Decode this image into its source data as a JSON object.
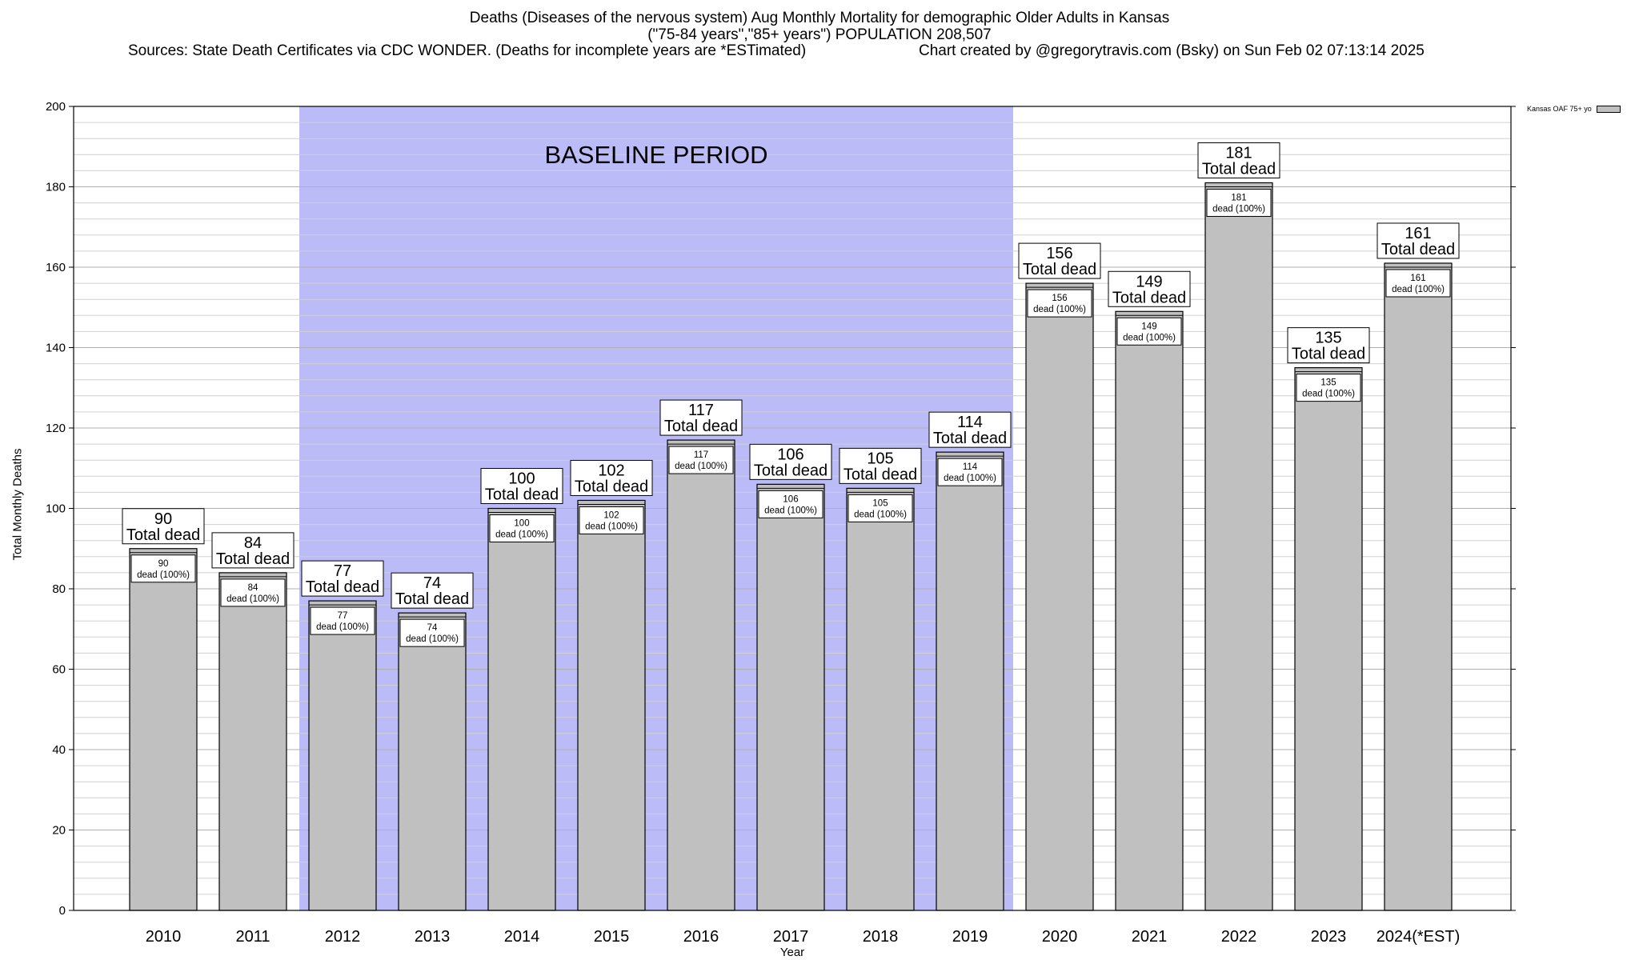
{
  "header": {
    "title": "Deaths (Diseases of the nervous system) Aug Monthly Mortality for demographic Older Adults in Kansas",
    "subtitle": "(\"75-84 years\",\"85+ years\") POPULATION 208,507",
    "sources": "Sources: State Death Certificates via CDC WONDER. (Deaths for incomplete years are *ESTimated)",
    "credit": "Chart created by @gregorytravis.com (Bsky) on Sun Feb 02 07:13:14 2025"
  },
  "chart_data": {
    "type": "bar",
    "title": "Deaths (Diseases of the nervous system) Aug Monthly Mortality for demographic Older Adults in Kansas",
    "xlabel": "Year",
    "ylabel": "Total Monthly Deaths",
    "ylim": [
      0,
      200
    ],
    "yticks": [
      0,
      20,
      40,
      60,
      80,
      100,
      120,
      140,
      160,
      180,
      200
    ],
    "grid": true,
    "legend_position": "top-right",
    "categories": [
      "2010",
      "2011",
      "2012",
      "2013",
      "2014",
      "2015",
      "2016",
      "2017",
      "2018",
      "2019",
      "2020",
      "2021",
      "2022",
      "2023",
      "2024(*EST)"
    ],
    "series": [
      {
        "name": "Kansas OAF 75+ yo",
        "color": "#c0c0c0",
        "values": [
          90,
          84,
          77,
          74,
          100,
          102,
          117,
          106,
          105,
          114,
          156,
          149,
          181,
          135,
          161
        ]
      }
    ],
    "top_label_suffix": "Total dead",
    "inner_label_suffix": "dead (100%)",
    "baseline": {
      "label": "BASELINE PERIOD",
      "start": "2012",
      "end": "2019",
      "color": "#bbbbf7"
    }
  }
}
